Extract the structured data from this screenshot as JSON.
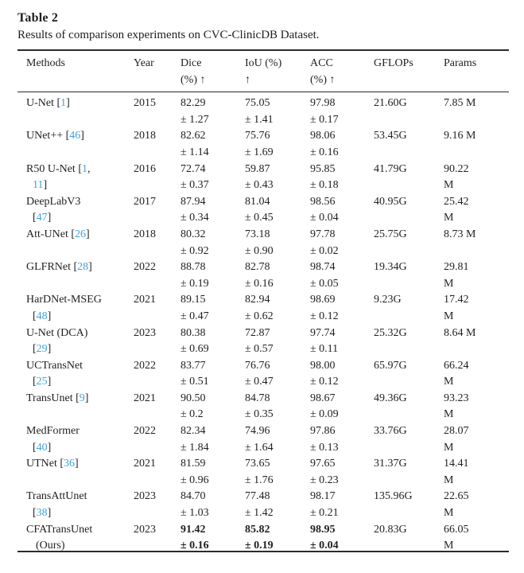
{
  "table": {
    "label": "Table 2",
    "caption": "Results of comparison experiments on CVC-ClinicDB Dataset.",
    "link_color": "#3fa2da",
    "columns": [
      {
        "key": "method",
        "lines": [
          "Methods",
          ""
        ]
      },
      {
        "key": "year",
        "lines": [
          "Year",
          ""
        ]
      },
      {
        "key": "dice",
        "lines": [
          "Dice",
          "(%) ↑"
        ]
      },
      {
        "key": "iou",
        "lines": [
          "IoU (%)",
          "↑"
        ]
      },
      {
        "key": "acc",
        "lines": [
          "ACC",
          "(%) ↑"
        ]
      },
      {
        "key": "gflops",
        "lines": [
          "GFLOPs",
          ""
        ]
      },
      {
        "key": "params",
        "lines": [
          "Params",
          ""
        ]
      }
    ],
    "rows": [
      {
        "method_lines": [
          [
            "U-Net [",
            "1",
            "]"
          ],
          []
        ],
        "year": "2015",
        "dice": [
          "82.29",
          "± 1.27"
        ],
        "iou": [
          "75.05",
          "± 1.41"
        ],
        "acc": [
          "97.98",
          "± 0.17"
        ],
        "gflops": "21.60G",
        "params": [
          "7.85 M",
          ""
        ],
        "bold_metrics": false
      },
      {
        "method_lines": [
          [
            "UNet++ [",
            "46",
            "]"
          ],
          []
        ],
        "year": "2018",
        "dice": [
          "82.62",
          "± 1.14"
        ],
        "iou": [
          "75.76",
          "± 1.69"
        ],
        "acc": [
          "98.06",
          "± 0.16"
        ],
        "gflops": "53.45G",
        "params": [
          "9.16 M",
          ""
        ],
        "bold_metrics": false
      },
      {
        "method_lines": [
          [
            "R50 U-Net [",
            "1",
            ","
          ],
          [
            "",
            "11",
            "]"
          ]
        ],
        "year": "2016",
        "dice": [
          "72.74",
          "± 0.37"
        ],
        "iou": [
          "59.87",
          "± 0.43"
        ],
        "acc": [
          "95.85",
          "± 0.18"
        ],
        "gflops": "41.79G",
        "params": [
          "90.22",
          "M"
        ],
        "bold_metrics": false
      },
      {
        "method_lines": [
          [
            "DeepLabV3"
          ],
          [
            "[",
            "47",
            "]"
          ]
        ],
        "year": "2017",
        "dice": [
          "87.94",
          "± 0.34"
        ],
        "iou": [
          "81.04",
          "± 0.45"
        ],
        "acc": [
          "98.56",
          "± 0.04"
        ],
        "gflops": "40.95G",
        "params": [
          "25.42",
          "M"
        ],
        "bold_metrics": false
      },
      {
        "method_lines": [
          [
            "Att-UNet [",
            "26",
            "]"
          ],
          []
        ],
        "year": "2018",
        "dice": [
          "80.32",
          "± 0.92"
        ],
        "iou": [
          "73.18",
          "± 0.90"
        ],
        "acc": [
          "97.78",
          "± 0.02"
        ],
        "gflops": "25.75G",
        "params": [
          "8.73 M",
          ""
        ],
        "bold_metrics": false
      },
      {
        "method_lines": [
          [
            "GLFRNet [",
            "28",
            "]"
          ],
          []
        ],
        "year": "2022",
        "dice": [
          "88.78",
          "± 0.19"
        ],
        "iou": [
          "82.78",
          "± 0.16"
        ],
        "acc": [
          "98.74",
          "± 0.05"
        ],
        "gflops": "19.34G",
        "params": [
          "29.81",
          "M"
        ],
        "bold_metrics": false
      },
      {
        "method_lines": [
          [
            "HarDNet-MSEG"
          ],
          [
            "[",
            "48",
            "]"
          ]
        ],
        "year": "2021",
        "dice": [
          "89.15",
          "± 0.47"
        ],
        "iou": [
          "82.94",
          "± 0.62"
        ],
        "acc": [
          "98.69",
          "± 0.12"
        ],
        "gflops": "9.23G",
        "params": [
          "17.42",
          "M"
        ],
        "bold_metrics": false
      },
      {
        "method_lines": [
          [
            "U-Net (DCA)"
          ],
          [
            "[",
            "29",
            "]"
          ]
        ],
        "year": "2023",
        "dice": [
          "80.38",
          "± 0.69"
        ],
        "iou": [
          "72.87",
          "± 0.57"
        ],
        "acc": [
          "97.74",
          "± 0.11"
        ],
        "gflops": "25.32G",
        "params": [
          "8.64 M",
          ""
        ],
        "bold_metrics": false
      },
      {
        "method_lines": [
          [
            "UCTransNet"
          ],
          [
            "[",
            "25",
            "]"
          ]
        ],
        "year": "2022",
        "dice": [
          "83.77",
          "± 0.51"
        ],
        "iou": [
          "76.76",
          "± 0.47"
        ],
        "acc": [
          "98.00",
          "± 0.12"
        ],
        "gflops": "65.97G",
        "params": [
          "66.24",
          "M"
        ],
        "bold_metrics": false
      },
      {
        "method_lines": [
          [
            "TransUnet [",
            "9",
            "]"
          ],
          []
        ],
        "year": "2021",
        "dice": [
          "90.50",
          "± 0.2"
        ],
        "iou": [
          "84.78",
          "± 0.35"
        ],
        "acc": [
          "98.67",
          "± 0.09"
        ],
        "gflops": "49.36G",
        "params": [
          "93.23",
          "M"
        ],
        "bold_metrics": false
      },
      {
        "method_lines": [
          [
            "MedFormer"
          ],
          [
            "[",
            "40",
            "]"
          ]
        ],
        "year": "2022",
        "dice": [
          "82.34",
          "± 1.84"
        ],
        "iou": [
          "74.96",
          "± 1.64"
        ],
        "acc": [
          "97.86",
          "± 0.13"
        ],
        "gflops": "33.76G",
        "params": [
          "28.07",
          "M"
        ],
        "bold_metrics": false
      },
      {
        "method_lines": [
          [
            "UTNet [",
            "36",
            "]"
          ],
          []
        ],
        "year": "2021",
        "dice": [
          "81.59",
          "± 0.96"
        ],
        "iou": [
          "73.65",
          "± 1.76"
        ],
        "acc": [
          "97.65",
          "± 0.23"
        ],
        "gflops": "31.37G",
        "params": [
          "14.41",
          "M"
        ],
        "bold_metrics": false
      },
      {
        "method_lines": [
          [
            "TransAttUnet"
          ],
          [
            "[",
            "38",
            "]"
          ]
        ],
        "year": "2023",
        "dice": [
          "84.70",
          "± 1.03"
        ],
        "iou": [
          "77.48",
          "± 1.42"
        ],
        "acc": [
          "98.17",
          "± 0.21"
        ],
        "gflops": "135.96G",
        "params": [
          "22.65",
          "M"
        ],
        "bold_metrics": false
      },
      {
        "method_lines": [
          [
            "CFATransUnet"
          ],
          [
            "(Ours)"
          ]
        ],
        "year": "2023",
        "dice": [
          "91.42",
          "± 0.16"
        ],
        "iou": [
          "85.82",
          "± 0.19"
        ],
        "acc": [
          "98.95",
          "± 0.04"
        ],
        "gflops": "20.83G",
        "params": [
          "66.05",
          "M"
        ],
        "bold_metrics": true
      }
    ]
  }
}
